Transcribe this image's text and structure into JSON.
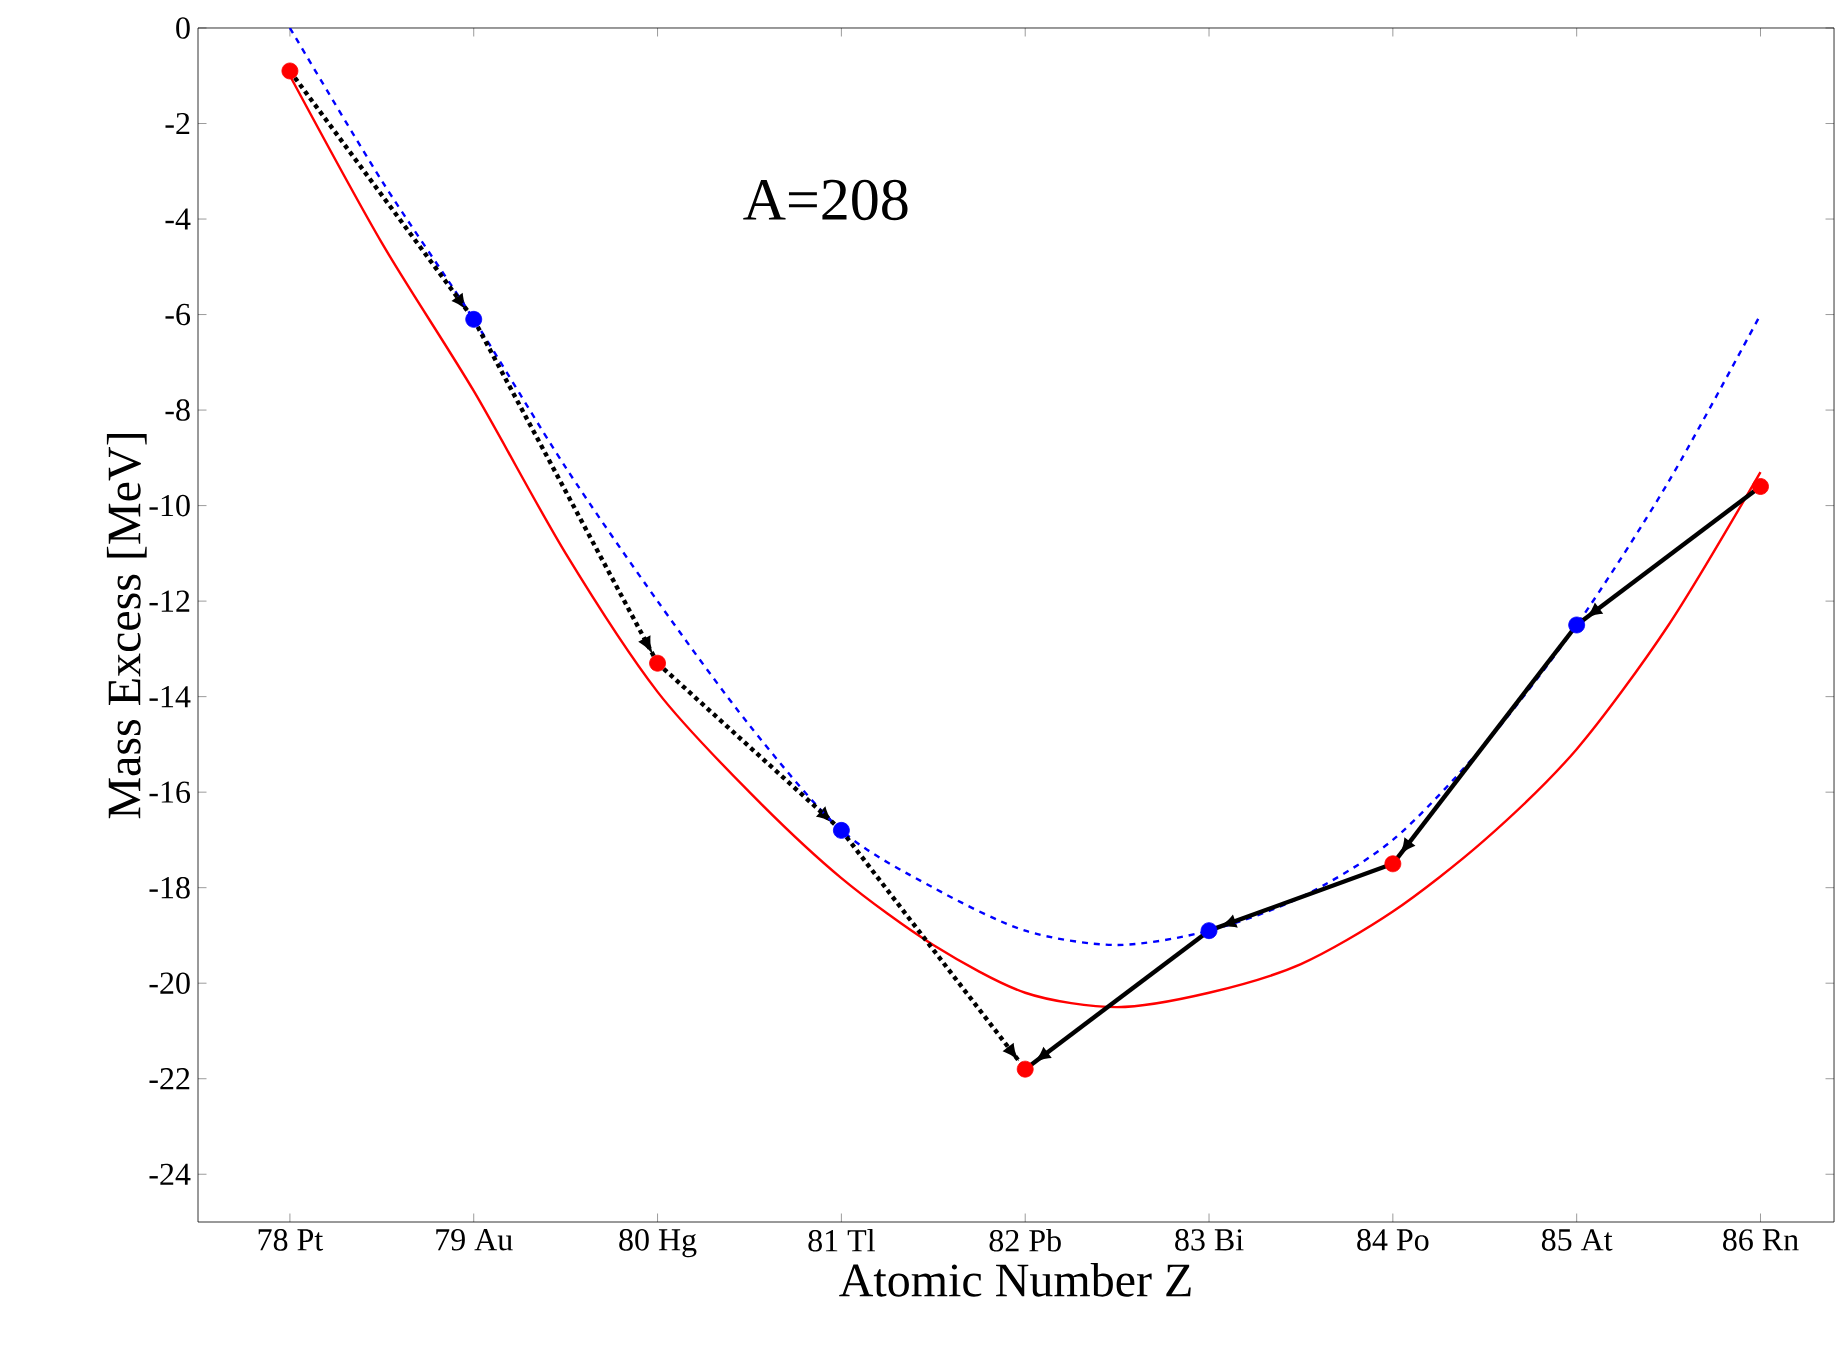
{
  "chart_data": {
    "type": "line",
    "xlabel": "Atomic Number Z",
    "ylabel": "Mass Excess [MeV]",
    "annotations": [
      "A=208"
    ],
    "xlim": [
      77.5,
      86.4
    ],
    "ylim": [
      -25,
      0
    ],
    "xticks": [
      {
        "value": 78,
        "label": "78 Pt"
      },
      {
        "value": 79,
        "label": "79 Au"
      },
      {
        "value": 80,
        "label": "80 Hg"
      },
      {
        "value": 81,
        "label": "81 Tl"
      },
      {
        "value": 82,
        "label": "82 Pb"
      },
      {
        "value": 83,
        "label": "83 Bi"
      },
      {
        "value": 84,
        "label": "84 Po"
      },
      {
        "value": 85,
        "label": "85 At"
      },
      {
        "value": 86,
        "label": "86 Rn"
      }
    ],
    "yticks": [
      -24,
      -22,
      -20,
      -18,
      -16,
      -14,
      -12,
      -10,
      -8,
      -6,
      -4,
      -2,
      0
    ],
    "series": [
      {
        "type": "line",
        "color": "#ff0000",
        "line_style": "solid",
        "marker": "none",
        "x": [
          78,
          78.5,
          79,
          79.5,
          80,
          80.5,
          81,
          81.5,
          82,
          82.5,
          83,
          83.5,
          84,
          84.5,
          85,
          85.5,
          86
        ],
        "values": [
          -1.0,
          -4.5,
          -7.6,
          -11.0,
          -13.9,
          -16.0,
          -17.8,
          -19.2,
          -20.2,
          -20.5,
          -20.2,
          -19.6,
          -18.5,
          -17.0,
          -15.1,
          -12.5,
          -9.3
        ]
      },
      {
        "type": "line",
        "color": "#0000ff",
        "line_style": "dashed",
        "marker": "none",
        "x": [
          78,
          78.5,
          79,
          79.5,
          80,
          80.5,
          81,
          81.5,
          82,
          82.5,
          83,
          83.5,
          84,
          84.5,
          85,
          85.5,
          86
        ],
        "values": [
          0.0,
          -3.2,
          -6.1,
          -9.2,
          -12.0,
          -14.6,
          -16.8,
          -18.0,
          -18.9,
          -19.2,
          -18.9,
          -18.2,
          -17.0,
          -15.0,
          -12.5,
          -9.5,
          -6.0
        ]
      },
      {
        "type": "line",
        "color": "#000000",
        "line_style": "dotted",
        "marker": "none",
        "x": [
          78,
          79
        ],
        "values": [
          -0.9,
          -6.1
        ]
      },
      {
        "type": "line",
        "color": "#000000",
        "line_style": "dotted",
        "marker": "none",
        "x": [
          79,
          80
        ],
        "values": [
          -6.1,
          -13.3
        ]
      },
      {
        "type": "line",
        "color": "#000000",
        "line_style": "dotted",
        "marker": "none",
        "x": [
          80,
          81
        ],
        "values": [
          -13.3,
          -16.8
        ]
      },
      {
        "type": "line",
        "color": "#000000",
        "line_style": "dotted",
        "marker": "none",
        "x": [
          81,
          82
        ],
        "values": [
          -16.8,
          -21.8
        ]
      },
      {
        "type": "line",
        "color": "#000000",
        "line_style": "solid",
        "marker": "none",
        "x": [
          86,
          85
        ],
        "values": [
          -9.6,
          -12.5
        ]
      },
      {
        "type": "line",
        "color": "#000000",
        "line_style": "solid",
        "marker": "none",
        "x": [
          85,
          84
        ],
        "values": [
          -12.5,
          -17.5
        ]
      },
      {
        "type": "line",
        "color": "#000000",
        "line_style": "solid",
        "marker": "none",
        "x": [
          84,
          83
        ],
        "values": [
          -17.5,
          -18.9
        ]
      },
      {
        "type": "line",
        "color": "#000000",
        "line_style": "solid",
        "marker": "none",
        "x": [
          83,
          82
        ],
        "values": [
          -18.9,
          -21.8
        ]
      },
      {
        "type": "scatter",
        "color": "#ff0000",
        "marker": "circle",
        "x": [
          78,
          80,
          82,
          84,
          86
        ],
        "values": [
          -0.9,
          -13.3,
          -21.8,
          -17.5,
          -9.6
        ]
      },
      {
        "type": "scatter",
        "color": "#0000ff",
        "marker": "circle",
        "x": [
          79,
          81,
          83,
          85
        ],
        "values": [
          -6.1,
          -16.8,
          -18.9,
          -12.5
        ]
      }
    ]
  }
}
